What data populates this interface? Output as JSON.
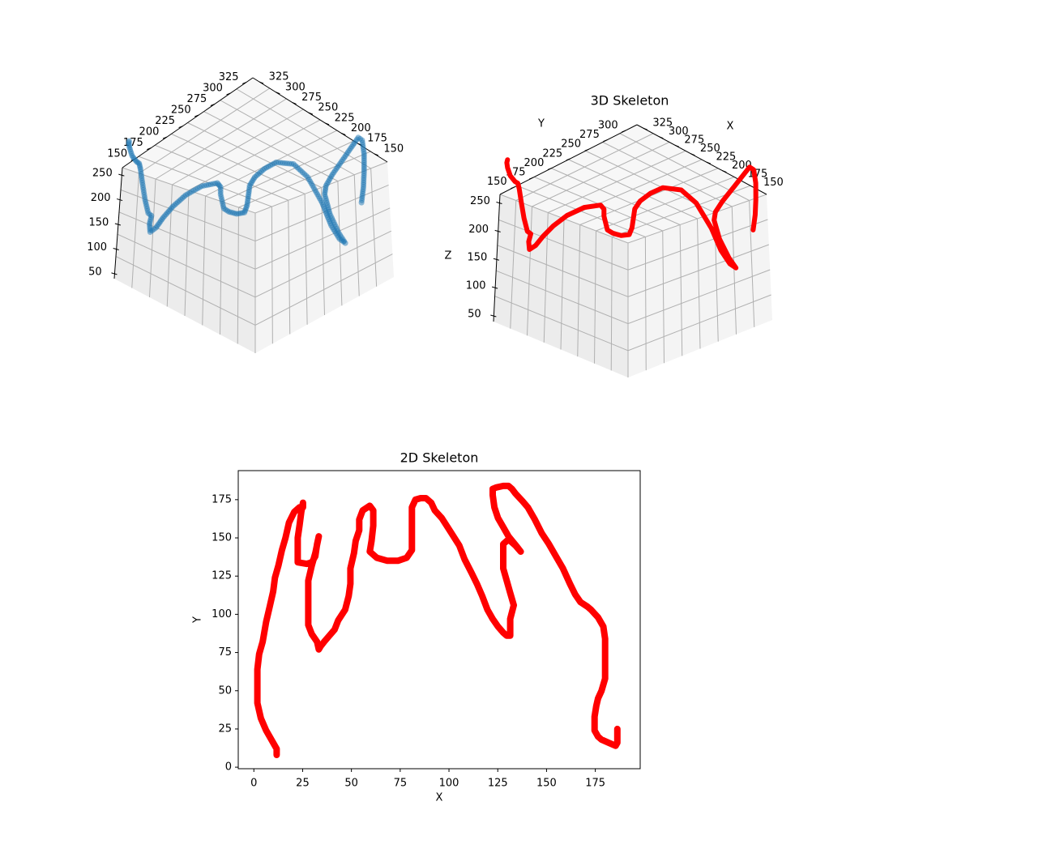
{
  "chart_data": [
    {
      "type": "scatter3d",
      "title": "",
      "xlabel": "",
      "ylabel": "",
      "zlabel": "",
      "color": "#1f77b4",
      "point_alpha": 0.5,
      "x_ticks": [
        "150",
        "175",
        "200",
        "225",
        "250",
        "275",
        "300",
        "325"
      ],
      "y_ticks": [
        "150",
        "175",
        "200",
        "225",
        "250",
        "275",
        "300",
        "325"
      ],
      "z_ticks": [
        "50",
        "100",
        "150",
        "200",
        "250"
      ],
      "xlim": [
        130,
        335
      ],
      "ylim": [
        130,
        335
      ],
      "zlim": [
        40,
        265
      ],
      "path": [
        [
          155,
          320,
          140
        ],
        [
          150,
          318,
          165
        ],
        [
          146,
          315,
          190
        ],
        [
          145,
          314,
          220
        ],
        [
          147,
          313,
          245
        ],
        [
          150,
          310,
          250
        ],
        [
          162,
          300,
          215
        ],
        [
          170,
          290,
          185
        ],
        [
          175,
          285,
          165
        ],
        [
          176,
          284,
          150
        ],
        [
          172,
          288,
          115
        ],
        [
          165,
          295,
          80
        ],
        [
          160,
          300,
          62
        ],
        [
          165,
          296,
          70
        ],
        [
          172,
          290,
          95
        ],
        [
          178,
          282,
          135
        ],
        [
          188,
          270,
          180
        ],
        [
          200,
          260,
          205
        ],
        [
          215,
          248,
          210
        ],
        [
          225,
          240,
          200
        ],
        [
          232,
          232,
          185
        ],
        [
          236,
          228,
          170
        ],
        [
          238,
          226,
          135
        ],
        [
          240,
          224,
          122
        ],
        [
          246,
          218,
          120
        ],
        [
          252,
          212,
          124
        ],
        [
          256,
          208,
          130
        ],
        [
          258,
          205,
          155
        ],
        [
          258,
          205,
          168
        ],
        [
          260,
          202,
          175
        ],
        [
          272,
          190,
          170
        ],
        [
          285,
          178,
          155
        ],
        [
          295,
          168,
          135
        ],
        [
          302,
          160,
          115
        ],
        [
          308,
          155,
          98
        ],
        [
          312,
          150,
          90
        ],
        [
          313,
          150,
          105
        ],
        [
          312,
          152,
          120
        ],
        [
          315,
          150,
          125
        ],
        [
          318,
          148,
          150
        ],
        [
          320,
          146,
          180
        ],
        [
          322,
          145,
          205
        ],
        [
          323,
          144,
          215
        ],
        [
          325,
          142,
          218
        ],
        [
          330,
          140,
          230
        ],
        [
          332,
          138,
          245
        ],
        [
          330,
          135,
          252
        ],
        [
          328,
          134,
          256
        ]
      ]
    },
    {
      "type": "line3d",
      "title": "3D Skeleton",
      "xlabel": "X",
      "ylabel": "Y",
      "zlabel": "Z",
      "color": "#ff0000",
      "x_ticks": [
        "150",
        "175",
        "200",
        "225",
        "250",
        "275",
        "300",
        "325"
      ],
      "y_ticks": [
        "150",
        "175",
        "200",
        "225",
        "250",
        "275",
        "300"
      ],
      "z_ticks": [
        "50",
        "100",
        "150",
        "200",
        "250"
      ],
      "xlim": [
        130,
        335
      ],
      "ylim": [
        130,
        315
      ],
      "zlim": [
        40,
        265
      ],
      "path": [
        [
          155,
          320,
          140
        ],
        [
          150,
          318,
          165
        ],
        [
          146,
          315,
          190
        ],
        [
          145,
          314,
          220
        ],
        [
          147,
          313,
          245
        ],
        [
          150,
          310,
          250
        ],
        [
          162,
          300,
          215
        ],
        [
          170,
          290,
          185
        ],
        [
          175,
          285,
          165
        ],
        [
          176,
          284,
          150
        ],
        [
          172,
          288,
          115
        ],
        [
          165,
          295,
          80
        ],
        [
          160,
          300,
          62
        ],
        [
          165,
          296,
          70
        ],
        [
          172,
          290,
          95
        ],
        [
          178,
          282,
          135
        ],
        [
          188,
          270,
          180
        ],
        [
          200,
          260,
          205
        ],
        [
          215,
          248,
          210
        ],
        [
          225,
          240,
          200
        ],
        [
          232,
          232,
          185
        ],
        [
          236,
          228,
          170
        ],
        [
          238,
          226,
          135
        ],
        [
          240,
          224,
          122
        ],
        [
          246,
          218,
          120
        ],
        [
          252,
          212,
          124
        ],
        [
          256,
          208,
          130
        ],
        [
          258,
          205,
          155
        ],
        [
          258,
          205,
          168
        ],
        [
          260,
          202,
          175
        ],
        [
          272,
          190,
          170
        ],
        [
          285,
          178,
          155
        ],
        [
          295,
          168,
          135
        ],
        [
          302,
          160,
          115
        ],
        [
          308,
          155,
          98
        ],
        [
          312,
          150,
          90
        ],
        [
          313,
          150,
          105
        ],
        [
          312,
          152,
          120
        ],
        [
          315,
          150,
          125
        ],
        [
          318,
          148,
          150
        ],
        [
          320,
          146,
          180
        ],
        [
          322,
          145,
          205
        ],
        [
          323,
          144,
          215
        ],
        [
          325,
          142,
          218
        ],
        [
          330,
          140,
          230
        ],
        [
          332,
          138,
          245
        ],
        [
          330,
          135,
          252
        ],
        [
          328,
          134,
          256
        ]
      ]
    },
    {
      "type": "line",
      "title": "2D Skeleton",
      "xlabel": "X",
      "ylabel": "Y",
      "color": "#ff0000",
      "xlim": [
        -8,
        198
      ],
      "ylim": [
        -1,
        194
      ],
      "x_ticks": [
        0,
        25,
        50,
        75,
        100,
        125,
        150,
        175
      ],
      "y_ticks": [
        0,
        25,
        50,
        75,
        100,
        125,
        150,
        175
      ],
      "path": [
        [
          13,
          8
        ],
        [
          13,
          12
        ],
        [
          10,
          18
        ],
        [
          7,
          24
        ],
        [
          4,
          32
        ],
        [
          2,
          42
        ],
        [
          2,
          55
        ],
        [
          2,
          64
        ],
        [
          3,
          74
        ],
        [
          5,
          82
        ],
        [
          7,
          95
        ],
        [
          9,
          105
        ],
        [
          11,
          115
        ],
        [
          12,
          124
        ],
        [
          14,
          132
        ],
        [
          16,
          142
        ],
        [
          18,
          150
        ],
        [
          20,
          160
        ],
        [
          23,
          167
        ],
        [
          26,
          170
        ],
        [
          28,
          170
        ],
        [
          28,
          173
        ],
        [
          27,
          167
        ],
        [
          26,
          158
        ],
        [
          25,
          150
        ],
        [
          25,
          143
        ],
        [
          25,
          134
        ],
        [
          30,
          133
        ],
        [
          33,
          134
        ],
        [
          35,
          138
        ],
        [
          36,
          146
        ],
        [
          37,
          151
        ],
        [
          35,
          140
        ],
        [
          33,
          132
        ],
        [
          31,
          122
        ],
        [
          31,
          110
        ],
        [
          31,
          93
        ],
        [
          33,
          87
        ],
        [
          36,
          82
        ],
        [
          37,
          77
        ],
        [
          38,
          79
        ],
        [
          40,
          82
        ],
        [
          43,
          86
        ],
        [
          46,
          90
        ],
        [
          48,
          96
        ],
        [
          52,
          103
        ],
        [
          54,
          112
        ],
        [
          55,
          120
        ],
        [
          55,
          130
        ],
        [
          57,
          140
        ],
        [
          58,
          148
        ],
        [
          60,
          155
        ],
        [
          60,
          162
        ],
        [
          62,
          168
        ],
        [
          66,
          171
        ],
        [
          68,
          168
        ],
        [
          68,
          158
        ],
        [
          67,
          148
        ],
        [
          66,
          141
        ],
        [
          70,
          137
        ],
        [
          76,
          135
        ],
        [
          82,
          135
        ],
        [
          87,
          137
        ],
        [
          90,
          142
        ],
        [
          90,
          155
        ],
        [
          90,
          170
        ],
        [
          92,
          175
        ],
        [
          95,
          176
        ],
        [
          98,
          176
        ],
        [
          101,
          173
        ],
        [
          103,
          168
        ],
        [
          107,
          163
        ],
        [
          112,
          154
        ],
        [
          117,
          145
        ],
        [
          120,
          136
        ],
        [
          124,
          127
        ],
        [
          127,
          120
        ],
        [
          130,
          112
        ],
        [
          133,
          103
        ],
        [
          136,
          97
        ],
        [
          139,
          92
        ],
        [
          142,
          88
        ],
        [
          144,
          86
        ],
        [
          146,
          86
        ],
        [
          146,
          97
        ],
        [
          148,
          106
        ],
        [
          146,
          114
        ],
        [
          144,
          122
        ],
        [
          142,
          130
        ],
        [
          142,
          138
        ],
        [
          142,
          146
        ],
        [
          145,
          149
        ],
        [
          149,
          145
        ],
        [
          152,
          141
        ],
        [
          150,
          144
        ],
        [
          145,
          151
        ],
        [
          142,
          157
        ],
        [
          139,
          163
        ],
        [
          137,
          170
        ],
        [
          136,
          178
        ],
        [
          136,
          182
        ],
        [
          138,
          183
        ],
        [
          142,
          184
        ],
        [
          145,
          184
        ],
        [
          147,
          182
        ],
        [
          149,
          179
        ],
        [
          153,
          174
        ],
        [
          156,
          170
        ],
        [
          160,
          162
        ],
        [
          164,
          153
        ],
        [
          168,
          146
        ],
        [
          172,
          138
        ],
        [
          176,
          130
        ],
        [
          180,
          120
        ],
        [
          183,
          113
        ],
        [
          186,
          108
        ],
        [
          190,
          105
        ],
        [
          192,
          103
        ],
        [
          196,
          98
        ],
        [
          199,
          92
        ],
        [
          200,
          84
        ],
        [
          200,
          74
        ],
        [
          200,
          58
        ],
        [
          198,
          50
        ],
        [
          196,
          45
        ],
        [
          195,
          40
        ],
        [
          194,
          33
        ],
        [
          194,
          24
        ],
        [
          196,
          20
        ],
        [
          198,
          18
        ],
        [
          202,
          16
        ],
        [
          206,
          14
        ],
        [
          207,
          16
        ],
        [
          207,
          25
        ]
      ]
    }
  ]
}
